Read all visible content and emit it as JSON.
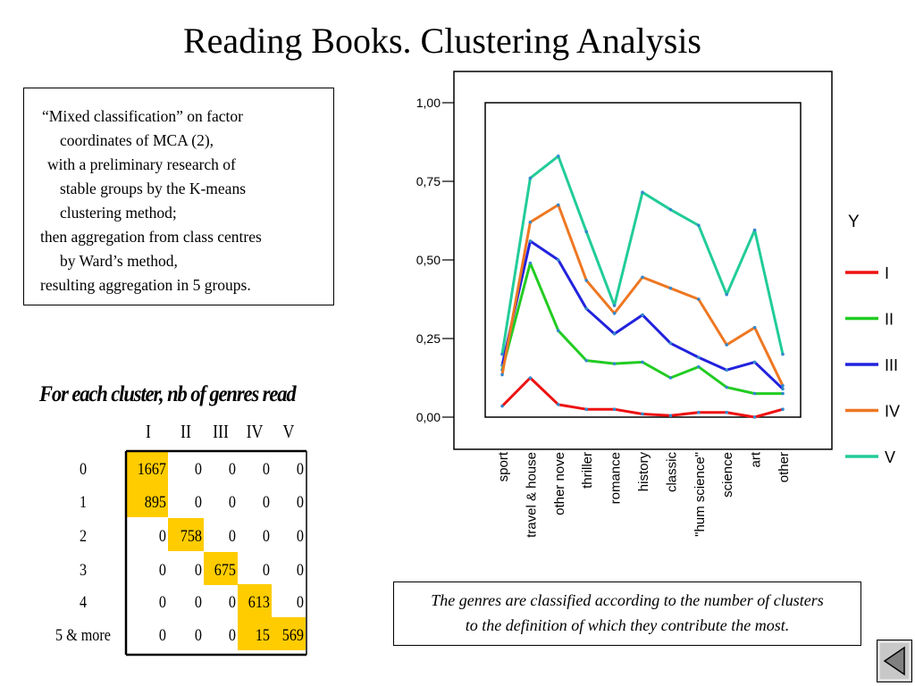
{
  "slide": {
    "title": "Reading Books. Clustering Analysis"
  },
  "method_box": {
    "lines": [
      "“Mixed classification” on factor",
      "coordinates of  MCA (2),",
      "with a preliminary research of",
      "stable groups by the K-means",
      "clustering method;",
      "then aggregation from class centres",
      "by Ward’s method,",
      "resulting  aggregation in 5 groups."
    ]
  },
  "cluster_table": {
    "title": "For each cluster, nb of genres read",
    "columns": [
      "I",
      "II",
      "III",
      "IV",
      "V"
    ],
    "rows": [
      {
        "label": "0",
        "values": [
          "1667",
          "0",
          "0",
          "0",
          "0"
        ],
        "highlight": 0
      },
      {
        "label": "1",
        "values": [
          "895",
          "0",
          "0",
          "0",
          "0"
        ],
        "highlight": 0
      },
      {
        "label": "2",
        "values": [
          "0",
          "758",
          "0",
          "0",
          "0"
        ],
        "highlight": 1
      },
      {
        "label": "3",
        "values": [
          "0",
          "0",
          "675",
          "0",
          "0"
        ],
        "highlight": 2
      },
      {
        "label": "4",
        "values": [
          "0",
          "0",
          "0",
          "613",
          "0"
        ],
        "highlight": 3
      },
      {
        "label": "5 & more",
        "values": [
          "0",
          "0",
          "0",
          "15",
          "569"
        ],
        "highlight": [
          3,
          4
        ]
      }
    ],
    "highlight_color": "#ffcc00"
  },
  "note": {
    "line1": "The genres are classified according to the number of  clusters",
    "line2": "to the definition of  which they contribute the most."
  },
  "chart_data": {
    "type": "line",
    "categories": [
      "sport",
      "travel & house",
      "other novel",
      "thriller",
      "romance",
      "history",
      "classic",
      "\"hum science\"",
      "science",
      "art",
      "other"
    ],
    "category_labels": [
      "sport",
      "travel & house",
      "other nove",
      "thriller",
      "romance",
      "history",
      "classic",
      "\"hum science\"",
      "science",
      "art",
      "other"
    ],
    "ylim": [
      0,
      1
    ],
    "yticks": [
      0,
      0.25,
      0.5,
      0.75,
      1.0
    ],
    "ytick_labels": [
      "0,00",
      "0,25",
      "0,50",
      "0,75",
      "1,00"
    ],
    "legend_title": "Y",
    "legend_position": "right",
    "grid": false,
    "series": [
      {
        "name": "I",
        "color": "#ee1111",
        "values": [
          0.035,
          0.125,
          0.04,
          0.025,
          0.025,
          0.01,
          0.005,
          0.015,
          0.015,
          0.0,
          0.025
        ]
      },
      {
        "name": "II",
        "color": "#22cc22",
        "values": [
          0.15,
          0.49,
          0.275,
          0.18,
          0.17,
          0.175,
          0.125,
          0.16,
          0.095,
          0.075,
          0.075
        ]
      },
      {
        "name": "III",
        "color": "#2222dd",
        "values": [
          0.165,
          0.56,
          0.5,
          0.345,
          0.265,
          0.325,
          0.235,
          0.19,
          0.15,
          0.175,
          0.09
        ]
      },
      {
        "name": "IV",
        "color": "#ee7722",
        "values": [
          0.135,
          0.62,
          0.675,
          0.435,
          0.33,
          0.445,
          0.41,
          0.375,
          0.23,
          0.285,
          0.1
        ]
      },
      {
        "name": "V",
        "color": "#22cc99",
        "values": [
          0.2,
          0.76,
          0.83,
          0.59,
          0.355,
          0.715,
          0.66,
          0.61,
          0.39,
          0.595,
          0.2
        ]
      }
    ]
  },
  "icons": {
    "back": "triangle-left-icon"
  }
}
